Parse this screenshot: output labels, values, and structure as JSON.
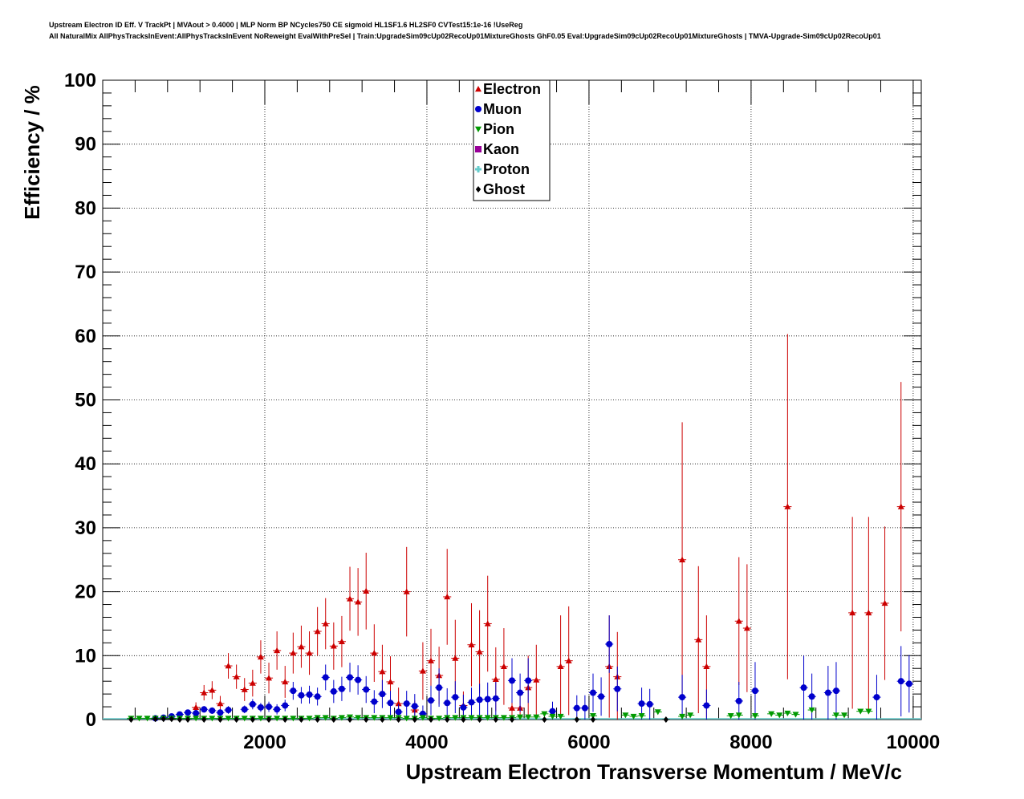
{
  "titles": {
    "line1": "Upstream Electron ID Eff. V TrackPt | MVAout > 0.4000 | MLP Norm BP NCycles750 CE sigmoid HL1SF1.6 HL2SF0 CVTest15:1e-16 !UseReg",
    "line2": "All NaturalMix AllPhysTracksInEvent:AllPhysTracksInEvent NoReweight EvalWithPreSel | Train:UpgradeSim09cUp02RecoUp01MixtureGhosts GhF0.05 Eval:UpgradeSim09cUp02RecoUp01MixtureGhosts | TMVA-Upgrade-Sim09cUp02RecoUp01"
  },
  "chart_data": {
    "type": "scatter",
    "xlabel": "Upstream Electron Transverse Momentum / MeV/c",
    "ylabel": "Efficiency / %",
    "xlim": [
      0,
      10100
    ],
    "ylim": [
      0,
      100
    ],
    "grid": true,
    "legend_position": "top-center",
    "x_ticks": [
      2000,
      4000,
      6000,
      8000,
      10000
    ],
    "y_ticks": [
      0,
      10,
      20,
      30,
      40,
      50,
      60,
      70,
      80,
      90,
      100
    ],
    "series": [
      {
        "name": "Electron",
        "color": "#cc0000",
        "marker": "triangle-up",
        "points": [
          [
            1150,
            1.9,
            0.8
          ],
          [
            1250,
            4.2,
            1.2
          ],
          [
            1350,
            4.6,
            1.4
          ],
          [
            1450,
            2.5,
            1.2
          ],
          [
            1550,
            8.4,
            2.0
          ],
          [
            1650,
            6.7,
            1.9
          ],
          [
            1750,
            4.7,
            1.8
          ],
          [
            1850,
            5.7,
            2.1
          ],
          [
            1950,
            9.8,
            2.6
          ],
          [
            2050,
            6.5,
            2.4
          ],
          [
            2150,
            10.8,
            3.0
          ],
          [
            2250,
            5.9,
            2.5
          ],
          [
            2350,
            10.4,
            3.2
          ],
          [
            2450,
            11.4,
            3.3
          ],
          [
            2550,
            10.4,
            3.4
          ],
          [
            2650,
            13.8,
            3.8
          ],
          [
            2750,
            15.0,
            4.0
          ],
          [
            2850,
            11.5,
            3.7
          ],
          [
            2950,
            12.2,
            4.0
          ],
          [
            3050,
            18.9,
            5.0
          ],
          [
            3150,
            18.4,
            5.3
          ],
          [
            3250,
            20.1,
            6.0
          ],
          [
            3350,
            10.4,
            4.5
          ],
          [
            3450,
            7.5,
            4.2
          ],
          [
            3550,
            5.9,
            4.0
          ],
          [
            3650,
            2.5,
            2.5
          ],
          [
            3750,
            20.0,
            7.0
          ],
          [
            3850,
            1.5,
            1.5
          ],
          [
            3950,
            7.6,
            4.5
          ],
          [
            4050,
            9.2,
            5.0
          ],
          [
            4150,
            6.9,
            4.5
          ],
          [
            4250,
            19.2,
            7.5
          ],
          [
            4350,
            9.6,
            6.0
          ],
          [
            4450,
            2.2,
            2.2
          ],
          [
            4550,
            11.7,
            6.5
          ],
          [
            4650,
            10.6,
            6.5
          ],
          [
            4750,
            15.0,
            7.5
          ],
          [
            4850,
            6.3,
            5.0
          ],
          [
            4950,
            8.3,
            6.0
          ],
          [
            5050,
            1.8,
            2.5
          ],
          [
            5150,
            1.8,
            2.5
          ],
          [
            5250,
            5.0,
            5.0
          ],
          [
            5350,
            6.2,
            5.5
          ],
          [
            5650,
            8.3,
            8.0
          ],
          [
            5750,
            9.2,
            8.5
          ],
          [
            6250,
            8.3,
            8.0
          ],
          [
            6350,
            6.7,
            7.0
          ],
          [
            7150,
            25.0,
            21.5
          ],
          [
            7350,
            12.5,
            11.5
          ],
          [
            7450,
            8.3,
            8.0
          ],
          [
            7850,
            15.4,
            10.0
          ],
          [
            7950,
            14.3,
            10.0
          ],
          [
            8450,
            33.3,
            27.0
          ],
          [
            9250,
            16.7,
            15.0
          ],
          [
            9450,
            16.7,
            15.0
          ],
          [
            9650,
            18.2,
            12.0
          ],
          [
            9850,
            33.3,
            19.5
          ]
        ]
      },
      {
        "name": "Muon",
        "color": "#0000cc",
        "marker": "circle",
        "points": [
          [
            650,
            0.2,
            0.2
          ],
          [
            750,
            0.3,
            0.3
          ],
          [
            850,
            0.5,
            0.3
          ],
          [
            950,
            0.8,
            0.4
          ],
          [
            1050,
            1.1,
            0.4
          ],
          [
            1150,
            1.0,
            0.4
          ],
          [
            1250,
            1.6,
            0.5
          ],
          [
            1350,
            1.4,
            0.5
          ],
          [
            1450,
            1.1,
            0.5
          ],
          [
            1550,
            1.5,
            0.6
          ],
          [
            1750,
            1.6,
            0.6
          ],
          [
            1850,
            2.4,
            0.8
          ],
          [
            1950,
            1.9,
            0.7
          ],
          [
            2050,
            2.0,
            0.8
          ],
          [
            2150,
            1.6,
            0.8
          ],
          [
            2250,
            2.2,
            0.9
          ],
          [
            2350,
            4.5,
            1.4
          ],
          [
            2450,
            3.8,
            1.3
          ],
          [
            2550,
            3.9,
            1.4
          ],
          [
            2650,
            3.6,
            1.4
          ],
          [
            2750,
            6.6,
            2.0
          ],
          [
            2850,
            4.4,
            1.8
          ],
          [
            2950,
            4.8,
            1.9
          ],
          [
            3050,
            6.6,
            2.3
          ],
          [
            3150,
            6.2,
            2.3
          ],
          [
            3250,
            4.7,
            2.1
          ],
          [
            3350,
            2.8,
            1.8
          ],
          [
            3450,
            4.0,
            2.2
          ],
          [
            3550,
            2.6,
            1.9
          ],
          [
            3650,
            1.2,
            1.2
          ],
          [
            3750,
            2.5,
            2.0
          ],
          [
            3850,
            2.1,
            1.9
          ],
          [
            3950,
            0.9,
            1.3
          ],
          [
            4050,
            3.0,
            2.3
          ],
          [
            4150,
            5.0,
            3.0
          ],
          [
            4250,
            2.6,
            2.3
          ],
          [
            4350,
            3.5,
            2.5
          ],
          [
            4450,
            1.9,
            2.0
          ],
          [
            4550,
            2.7,
            2.3
          ],
          [
            4650,
            3.1,
            2.5
          ],
          [
            4750,
            3.2,
            2.6
          ],
          [
            4850,
            3.3,
            2.6
          ],
          [
            5050,
            6.1,
            3.5
          ],
          [
            5150,
            4.2,
            3.0
          ],
          [
            5250,
            6.1,
            3.5
          ],
          [
            5550,
            1.3,
            1.5
          ],
          [
            5850,
            1.8,
            2.0
          ],
          [
            5950,
            1.8,
            2.0
          ],
          [
            6050,
            4.2,
            3.0
          ],
          [
            6150,
            3.6,
            3.0
          ],
          [
            6250,
            11.8,
            4.5
          ],
          [
            6350,
            4.8,
            3.5
          ],
          [
            6650,
            2.5,
            2.5
          ],
          [
            6750,
            2.4,
            2.4
          ],
          [
            7150,
            3.5,
            3.5
          ],
          [
            7450,
            2.2,
            2.5
          ],
          [
            7850,
            2.9,
            3.0
          ],
          [
            8050,
            4.5,
            4.5
          ],
          [
            8650,
            5.0,
            5.0
          ],
          [
            8750,
            3.6,
            3.6
          ],
          [
            8950,
            4.2,
            4.2
          ],
          [
            9050,
            4.5,
            4.5
          ],
          [
            9550,
            3.5,
            3.5
          ],
          [
            9850,
            6.0,
            5.5
          ],
          [
            9950,
            5.6,
            4.5
          ]
        ]
      },
      {
        "name": "Pion",
        "color": "#009900",
        "marker": "triangle-down",
        "points": [
          [
            350,
            0.2
          ],
          [
            450,
            0.2
          ],
          [
            550,
            0.2
          ],
          [
            650,
            0.2
          ],
          [
            750,
            0.2
          ],
          [
            850,
            0.2
          ],
          [
            950,
            0.2
          ],
          [
            1050,
            0.2
          ],
          [
            1150,
            0.2
          ],
          [
            1250,
            0.2
          ],
          [
            1350,
            0.2
          ],
          [
            1450,
            0.2
          ],
          [
            1550,
            0.2
          ],
          [
            1650,
            0.2
          ],
          [
            1750,
            0.2
          ],
          [
            1850,
            0.2
          ],
          [
            1950,
            0.2
          ],
          [
            2050,
            0.2
          ],
          [
            2150,
            0.2
          ],
          [
            2250,
            0.2
          ],
          [
            2350,
            0.2
          ],
          [
            2450,
            0.2
          ],
          [
            2550,
            0.2
          ],
          [
            2650,
            0.3
          ],
          [
            2750,
            0.3
          ],
          [
            2850,
            0.2
          ],
          [
            2950,
            0.3
          ],
          [
            3050,
            0.4
          ],
          [
            3150,
            0.3
          ],
          [
            3250,
            0.3
          ],
          [
            3350,
            0.3
          ],
          [
            3450,
            0.3
          ],
          [
            3550,
            0.3
          ],
          [
            3650,
            0.3
          ],
          [
            3750,
            0.2
          ],
          [
            3850,
            0.2
          ],
          [
            3950,
            0.3
          ],
          [
            4050,
            0.2
          ],
          [
            4150,
            0.2
          ],
          [
            4250,
            0.3
          ],
          [
            4350,
            0.3
          ],
          [
            4450,
            0.3
          ],
          [
            4550,
            0.3
          ],
          [
            4650,
            0.3
          ],
          [
            4750,
            0.3
          ],
          [
            4850,
            0.3
          ],
          [
            4950,
            0.3
          ],
          [
            5050,
            0.3
          ],
          [
            5150,
            0.4
          ],
          [
            5250,
            0.4
          ],
          [
            5350,
            0.4
          ],
          [
            5450,
            0.9
          ],
          [
            5550,
            0.5
          ],
          [
            5650,
            0.5
          ],
          [
            6050,
            0.6
          ],
          [
            6450,
            0.7
          ],
          [
            6550,
            0.5
          ],
          [
            6650,
            0.6
          ],
          [
            6850,
            1.2
          ],
          [
            7150,
            0.5
          ],
          [
            7250,
            0.7
          ],
          [
            7750,
            0.6
          ],
          [
            7850,
            0.7
          ],
          [
            8050,
            0.6
          ],
          [
            8250,
            0.9
          ],
          [
            8350,
            0.7
          ],
          [
            8450,
            1.0
          ],
          [
            8550,
            0.8
          ],
          [
            8750,
            1.5
          ],
          [
            9050,
            0.7
          ],
          [
            9150,
            0.7
          ],
          [
            9350,
            1.3
          ],
          [
            9450,
            1.3
          ]
        ]
      },
      {
        "name": "Kaon",
        "color": "#990099",
        "marker": "square",
        "points": []
      },
      {
        "name": "Proton",
        "color": "#66cccc",
        "marker": "cross",
        "points": []
      },
      {
        "name": "Ghost",
        "color": "#000000",
        "marker": "diamond",
        "points": [
          [
            350,
            0.0
          ],
          [
            650,
            0.1
          ],
          [
            750,
            0.1
          ],
          [
            850,
            0.1
          ],
          [
            950,
            0.0
          ],
          [
            1050,
            0.0
          ],
          [
            1250,
            0.0
          ],
          [
            1450,
            0.0
          ],
          [
            1650,
            0.0
          ],
          [
            1850,
            0.0
          ],
          [
            2050,
            0.0
          ],
          [
            2250,
            0.0
          ],
          [
            2450,
            0.0
          ],
          [
            2650,
            0.0
          ],
          [
            2850,
            0.0
          ],
          [
            3050,
            0.0
          ],
          [
            3250,
            0.0
          ],
          [
            3450,
            0.0
          ],
          [
            3650,
            0.0
          ],
          [
            3850,
            0.0
          ],
          [
            4050,
            0.0
          ],
          [
            4250,
            0.0
          ],
          [
            4450,
            0.0
          ],
          [
            4650,
            0.0
          ],
          [
            4850,
            0.0
          ],
          [
            5050,
            0.0
          ],
          [
            5450,
            0.0
          ],
          [
            5850,
            0.0
          ],
          [
            6050,
            0.0
          ],
          [
            6950,
            0.0
          ]
        ]
      }
    ]
  }
}
